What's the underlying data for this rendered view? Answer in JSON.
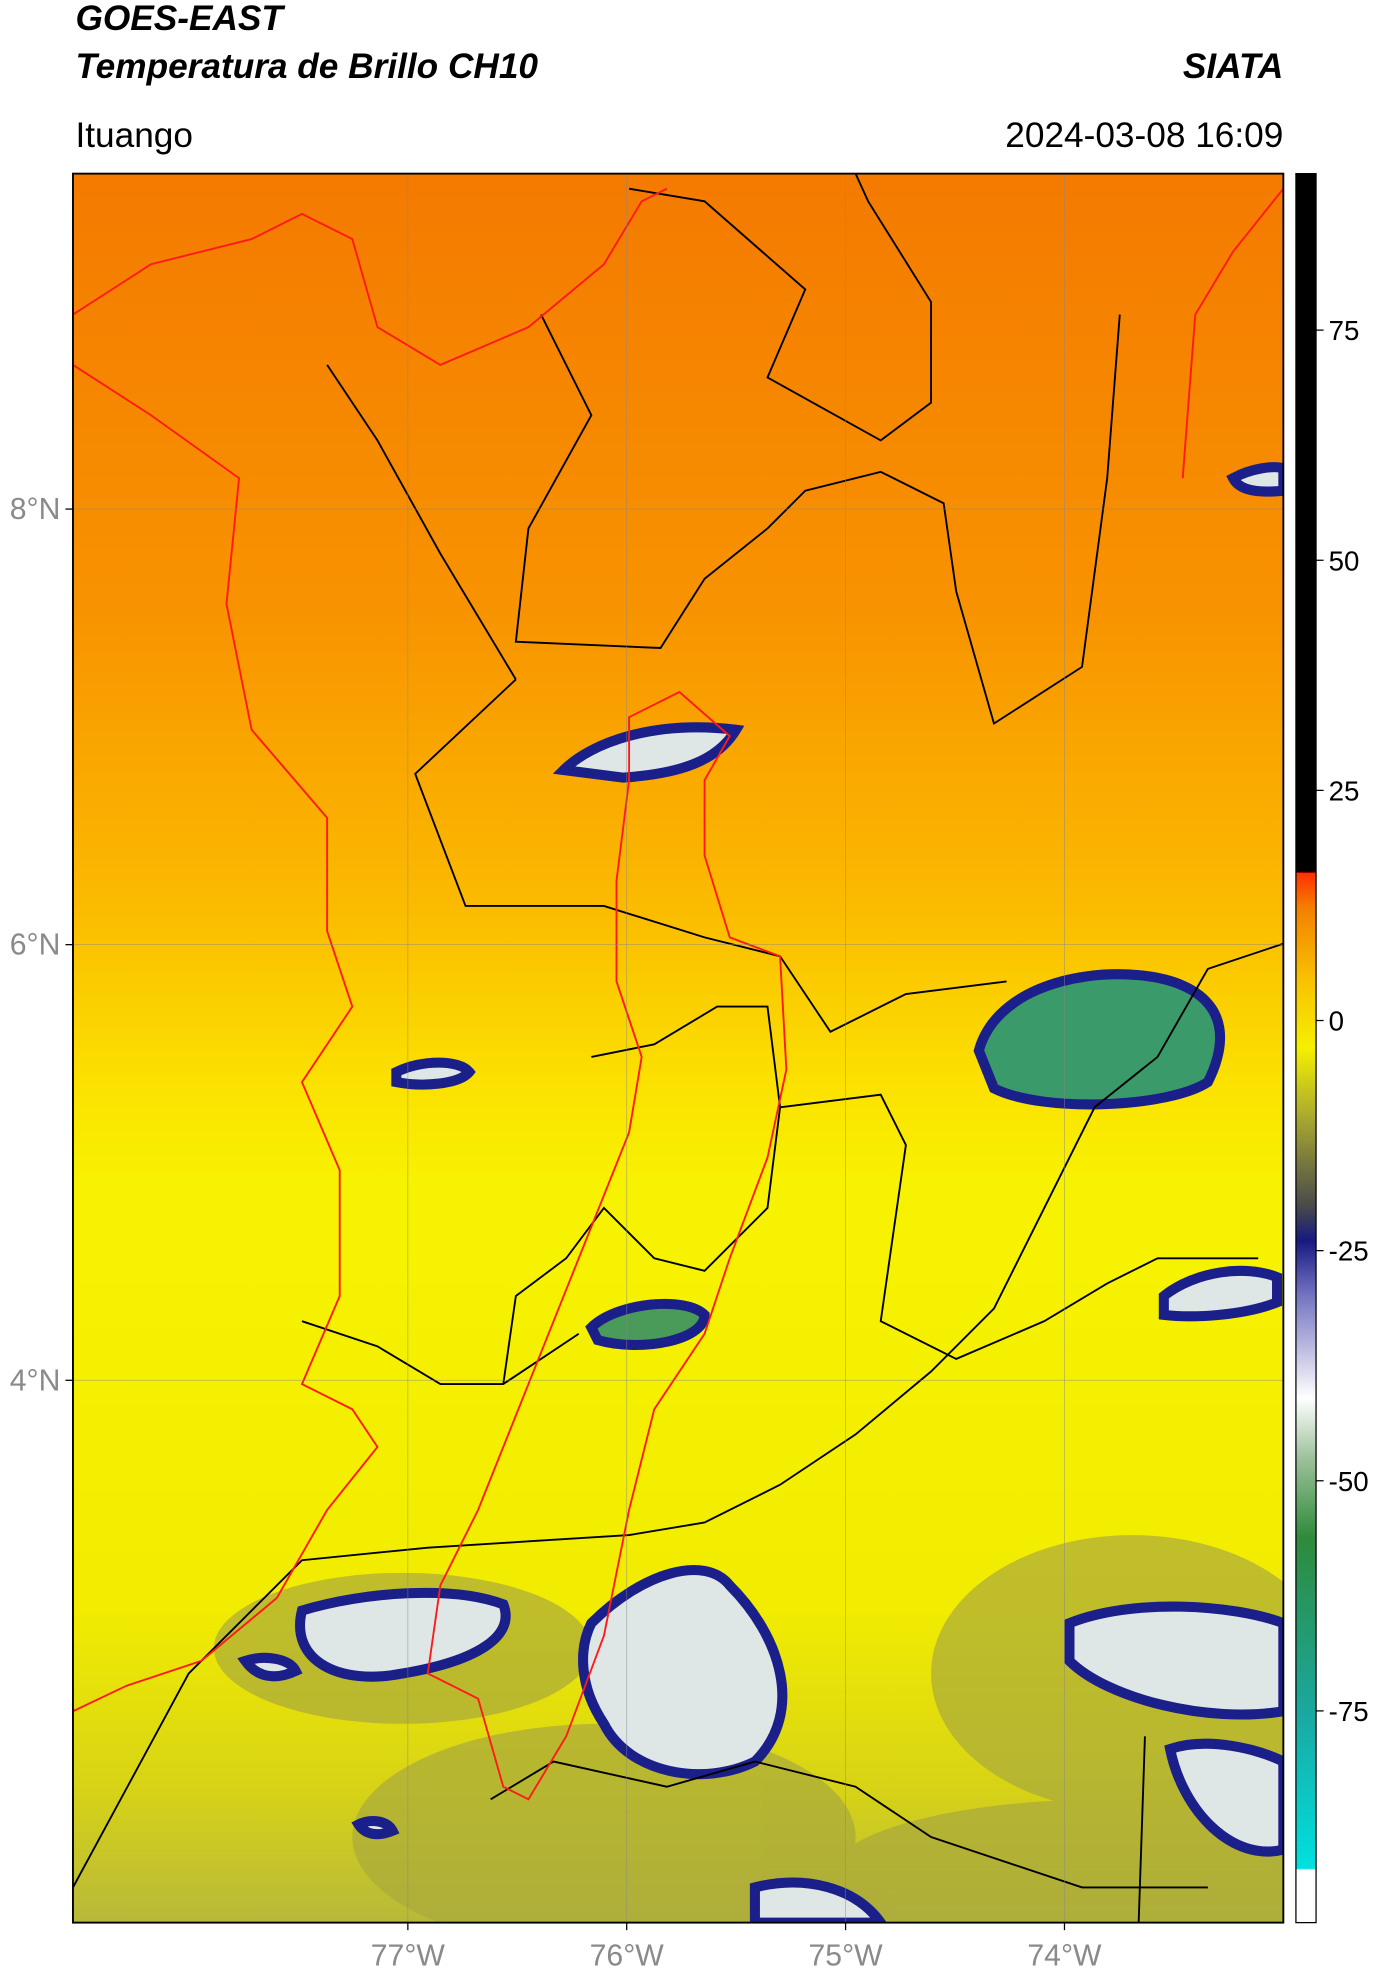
{
  "header": {
    "title": "GOES-EAST",
    "subtitle": "Temperatura de Brillo CH10",
    "brand": "SIATA",
    "location": "Ituango",
    "datetime": "2024-03-08 16:09"
  },
  "map": {
    "lonlim": [
      -78.53,
      -73.0
    ],
    "latlim": [
      1.51,
      9.54
    ],
    "lat_ticks": [
      {
        "value": 8,
        "label": "8°N"
      },
      {
        "value": 6,
        "label": "6°N"
      },
      {
        "value": 4,
        "label": "4°N"
      }
    ],
    "lon_ticks": [
      {
        "value": -77,
        "label": "77°W"
      },
      {
        "value": -76,
        "label": "76°W"
      },
      {
        "value": -75,
        "label": "75°W"
      },
      {
        "value": -74,
        "label": "74°W"
      }
    ]
  },
  "colorbar": {
    "clim": [
      -98,
      92
    ],
    "ticks": [
      75,
      50,
      25,
      0,
      -25,
      -50,
      -75
    ]
  }
}
